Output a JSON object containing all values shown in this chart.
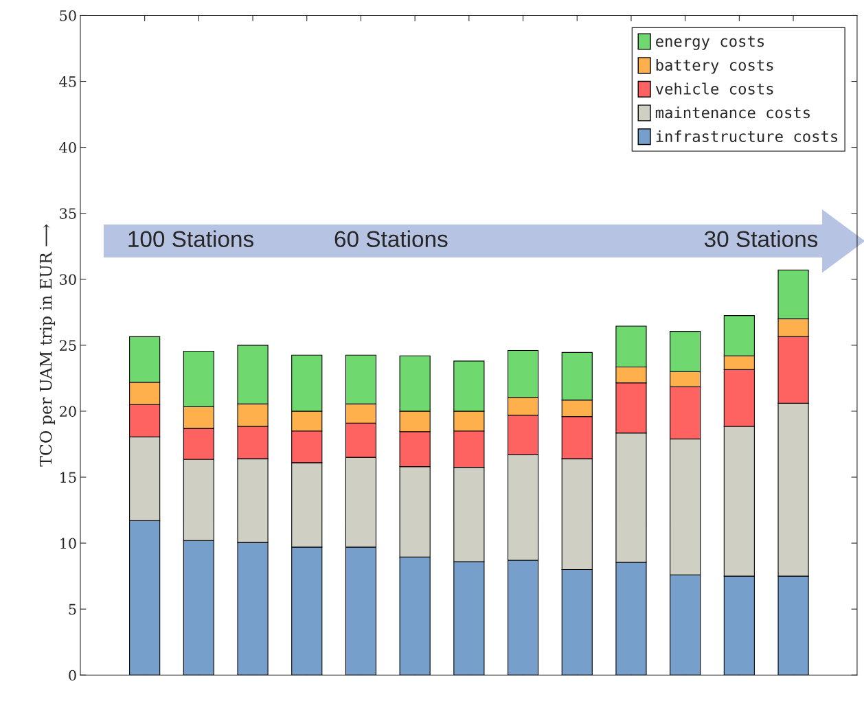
{
  "chart_data": {
    "type": "bar",
    "stacked": true,
    "ylabel": "TCO per UAM trip in EUR ⟶",
    "categories": [
      null,
      null,
      null,
      null,
      null,
      null,
      null,
      null,
      null,
      null,
      null,
      null,
      null
    ],
    "series": [
      {
        "name": "infrastructure costs",
        "color": "#769fcb",
        "values": [
          11.7,
          10.2,
          10.05,
          9.7,
          9.7,
          8.95,
          8.6,
          8.7,
          8.0,
          8.55,
          7.6,
          7.5,
          7.5
        ]
      },
      {
        "name": "maintenance costs",
        "color": "#d0cfc4",
        "values": [
          6.35,
          6.15,
          6.35,
          6.4,
          6.8,
          6.85,
          7.15,
          8.0,
          8.4,
          9.8,
          10.3,
          11.35,
          13.1
        ]
      },
      {
        "name": "vehicle costs",
        "color": "#ff6361",
        "values": [
          2.45,
          2.35,
          2.45,
          2.4,
          2.6,
          2.65,
          2.75,
          3.0,
          3.2,
          3.8,
          3.95,
          4.3,
          5.05
        ]
      },
      {
        "name": "battery costs",
        "color": "#fdb04b",
        "values": [
          1.7,
          1.65,
          1.7,
          1.5,
          1.45,
          1.55,
          1.5,
          1.35,
          1.25,
          1.2,
          1.15,
          1.05,
          1.35
        ]
      },
      {
        "name": "energy costs",
        "color": "#6fd96f",
        "values": [
          3.45,
          4.2,
          4.45,
          4.25,
          3.7,
          4.2,
          3.8,
          3.55,
          3.6,
          3.1,
          3.05,
          3.05,
          3.7
        ]
      }
    ],
    "ylim": [
      0,
      50
    ],
    "yticks": [
      0,
      5,
      10,
      15,
      20,
      25,
      30,
      35,
      40,
      45,
      50
    ],
    "legend": "top right",
    "tick_labels": "y",
    "annotations": [
      "100 Stations",
      "60 Stations",
      "30 Stations"
    ]
  }
}
